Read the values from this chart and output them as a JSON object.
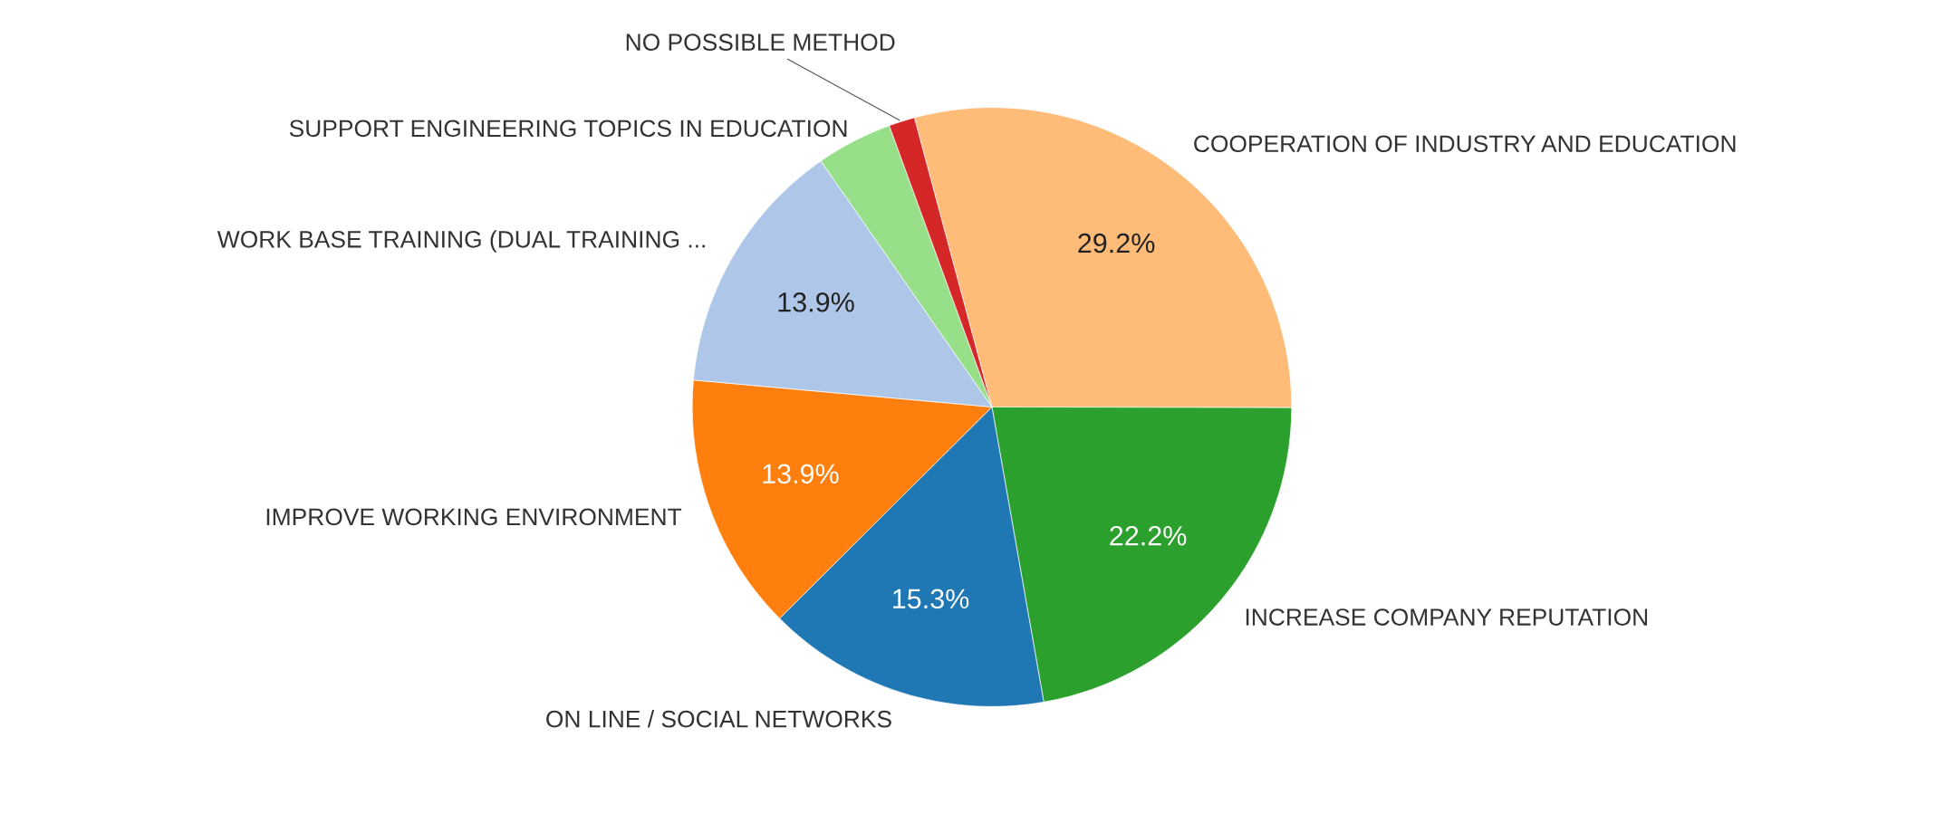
{
  "chart_data": {
    "type": "pie",
    "categories": [
      "COOPERATION OF INDUSTRY AND EDUCATION",
      "INCREASE COMPANY REPUTATION",
      "ON LINE / SOCIAL NETWORKS",
      "IMPROVE WORKING ENVIRONMENT",
      "WORK BASE TRAINING (DUAL TRAINING ...",
      "SUPPORT ENGINEERING TOPICS IN EDUCATION",
      "NO POSSIBLE METHOD"
    ],
    "values": [
      29.2,
      22.2,
      15.3,
      13.9,
      13.9,
      4.1,
      1.4
    ],
    "colors": [
      "#ffbb78",
      "#2ca02c",
      "#1f77b4",
      "#ff7f0e",
      "#aec7e8",
      "#98df8a",
      "#d62728"
    ],
    "value_labels": [
      "29.2%",
      "22.2%",
      "15.3%",
      "13.9%",
      "13.9%",
      null,
      null
    ]
  }
}
